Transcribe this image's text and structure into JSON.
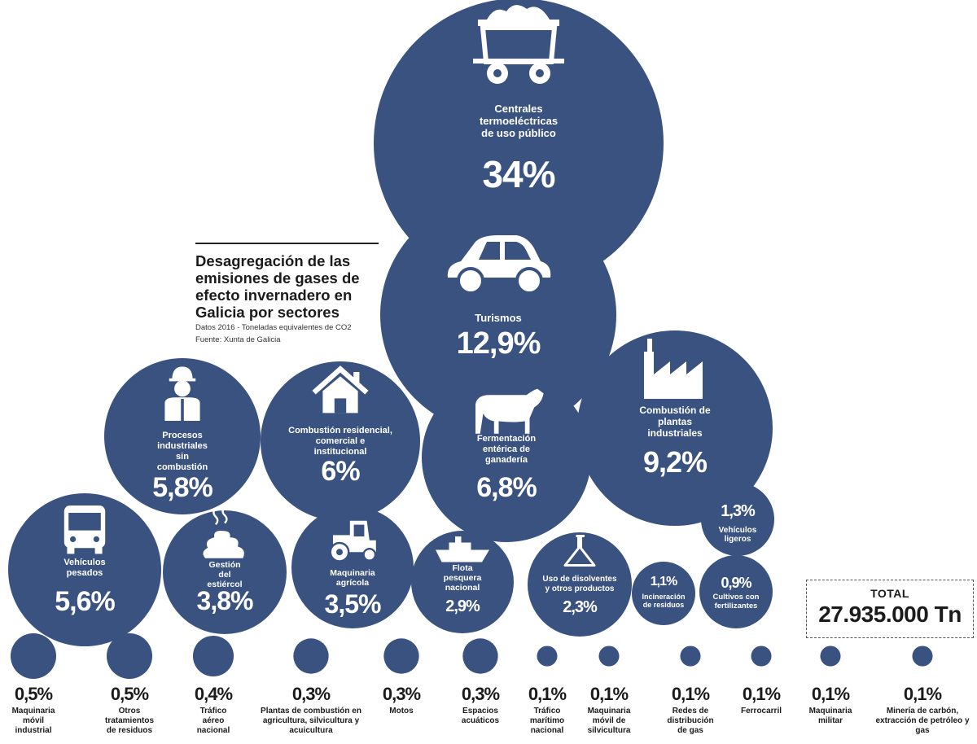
{
  "title": {
    "heading": "Desagregación de las emisiones de gases de efecto invernadero en Galicia por sectores",
    "subtitle": "Datos 2016 - Toneladas equivalentes de CO2",
    "source": "Fuente: Xunta de Galicia"
  },
  "total": {
    "label": "TOTAL",
    "value": "27.935.000 Tn"
  },
  "colors": {
    "bubble": "#3a5280",
    "text_on_bubble": "#ffffff",
    "text_dark": "#1b1b1b"
  },
  "chart_data": {
    "type": "bubble",
    "title": "Desagregación de las emisiones de gases de efecto invernadero en Galicia por sectores",
    "unit": "% del total",
    "sectors": [
      {
        "label": "Centrales termoeléctricas de uso público",
        "value": 34,
        "display": "34%",
        "icon": "coal-wagon-icon"
      },
      {
        "label": "Turismos",
        "value": 12.9,
        "display": "12,9%",
        "icon": "car-icon"
      },
      {
        "label": "Combustión de plantas industriales",
        "value": 9.2,
        "display": "9,2%",
        "icon": "factory-icon"
      },
      {
        "label": "Fermentación entérica de ganadería",
        "value": 6.8,
        "display": "6,8%",
        "icon": "cow-icon"
      },
      {
        "label": "Combustión residencial, comercial e institucional",
        "value": 6,
        "display": "6%",
        "icon": "house-icon"
      },
      {
        "label": "Procesos industriales sin combustión",
        "value": 5.8,
        "display": "5,8%",
        "icon": "worker-icon"
      },
      {
        "label": "Vehículos pesados",
        "value": 5.6,
        "display": "5,6%",
        "icon": "bus-icon"
      },
      {
        "label": "Gestión del estiércol",
        "value": 3.8,
        "display": "3,8%",
        "icon": "manure-icon"
      },
      {
        "label": "Maquinaria agrícola",
        "value": 3.5,
        "display": "3,5%",
        "icon": "tractor-icon"
      },
      {
        "label": "Flota pesquera nacional",
        "value": 2.9,
        "display": "2,9%",
        "icon": "ship-icon"
      },
      {
        "label": "Uso de disolventes y otros productos",
        "value": 2.3,
        "display": "2,3%",
        "icon": "flask-icon"
      },
      {
        "label": "Vehículos ligeros",
        "value": 1.3,
        "display": "1,3%"
      },
      {
        "label": "Incineración de residuos",
        "value": 1.1,
        "display": "1,1%"
      },
      {
        "label": "Cultivos con fertilizantes",
        "value": 0.9,
        "display": "0,9%"
      },
      {
        "label": "Maquinaria móvil industrial",
        "value": 0.5,
        "display": "0,5%"
      },
      {
        "label": "Otros tratamientos de residuos",
        "value": 0.5,
        "display": "0,5%"
      },
      {
        "label": "Tráfico aéreo nacional",
        "value": 0.4,
        "display": "0,4%"
      },
      {
        "label": "Plantas de combustión en agricultura, silvicultura y acuicultura",
        "value": 0.3,
        "display": "0,3%"
      },
      {
        "label": "Motos",
        "value": 0.3,
        "display": "0,3%"
      },
      {
        "label": "Espacios acuáticos",
        "value": 0.3,
        "display": "0,3%"
      },
      {
        "label": "Tráfico marítimo nacional",
        "value": 0.1,
        "display": "0,1%"
      },
      {
        "label": "Maquinaria móvil de silvicultura",
        "value": 0.1,
        "display": "0,1%"
      },
      {
        "label": "Redes de distribución de gas",
        "value": 0.1,
        "display": "0,1%"
      },
      {
        "label": "Ferrocarril",
        "value": 0.1,
        "display": "0,1%"
      },
      {
        "label": "Maquinaria militar",
        "value": 0.1,
        "display": "0,1%"
      },
      {
        "label": "Minería de carbón, extracción de petróleo y gas",
        "value": 0.1,
        "display": "0,1%"
      }
    ]
  }
}
